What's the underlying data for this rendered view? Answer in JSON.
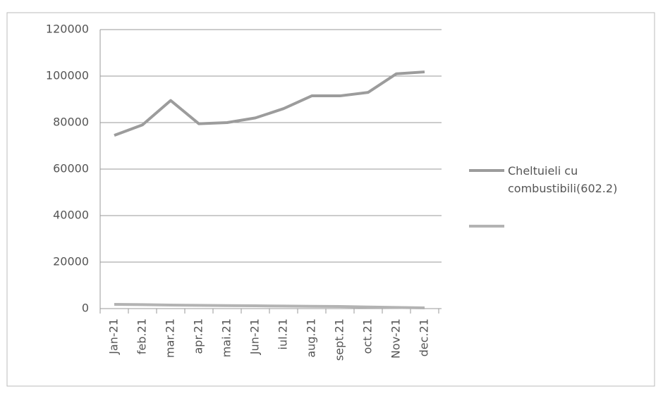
{
  "chart_data": {
    "type": "line",
    "categories": [
      "Jan-21",
      "feb.21",
      "mar.21",
      "apr.21",
      "mai.21",
      "Jun-21",
      "iul.21",
      "aug.21",
      "sept.21",
      "oct.21",
      "Nov-21",
      "dec.21"
    ],
    "series": [
      {
        "name": "Cheltuieli cu combustibili(602.2)",
        "color": "#9c9c9c",
        "values": [
          74500,
          79000,
          89500,
          79500,
          80000,
          82000,
          86000,
          91500,
          91500,
          93000,
          101000,
          101800
        ]
      },
      {
        "color": "#b3b3b3",
        "values": [
          1800,
          1700,
          1500,
          1400,
          1300,
          1200,
          1100,
          1000,
          900,
          700,
          500,
          300
        ]
      }
    ],
    "ylim": [
      0,
      120000
    ],
    "yticks": [
      0,
      20000,
      40000,
      60000,
      80000,
      100000,
      120000
    ],
    "grid": true,
    "legend": "right"
  }
}
